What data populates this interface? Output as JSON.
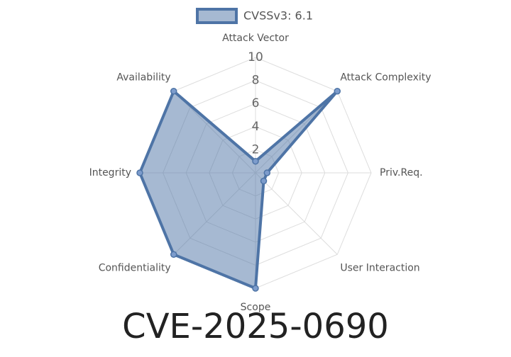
{
  "chart_data": {
    "type": "radar",
    "title": "CVE-2025-0690",
    "categories": [
      "Attack Vector",
      "Attack Complexity",
      "Priv.Req.",
      "User Interaction",
      "Scope",
      "Confidentiality",
      "Integrity",
      "Availability"
    ],
    "series": [
      {
        "name": "CVSSv3: 6.1",
        "color": "#4e74a6",
        "values": [
          1,
          10,
          1,
          1,
          10,
          10,
          10,
          10
        ]
      }
    ],
    "rlim": [
      0,
      10
    ],
    "rticks": [
      2,
      4,
      6,
      8,
      10
    ],
    "grid": true,
    "legend": "top"
  }
}
